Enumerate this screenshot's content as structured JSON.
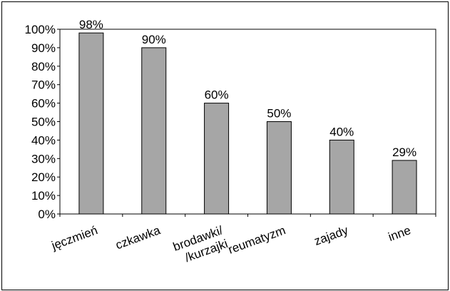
{
  "chart_data": {
    "type": "bar",
    "categories": [
      [
        "jęczmień"
      ],
      [
        "czkawka"
      ],
      [
        "brodawki/",
        "/kurzajki"
      ],
      [
        "reumatyzm"
      ],
      [
        "zajady"
      ],
      [
        "inne"
      ]
    ],
    "values": [
      98,
      90,
      60,
      50,
      40,
      29
    ],
    "data_labels": [
      "98%",
      "90%",
      "60%",
      "50%",
      "40%",
      "29%"
    ],
    "y_ticks": [
      "0%",
      "10%",
      "20%",
      "30%",
      "40%",
      "50%",
      "60%",
      "70%",
      "80%",
      "90%",
      "100%"
    ],
    "ylim": [
      0,
      100
    ],
    "grid": false,
    "legend": "none",
    "colors": {
      "bar_fill": "#a6a6a6",
      "bar_stroke": "#000000",
      "plot_border": "#000000",
      "background": "#ffffff"
    }
  }
}
